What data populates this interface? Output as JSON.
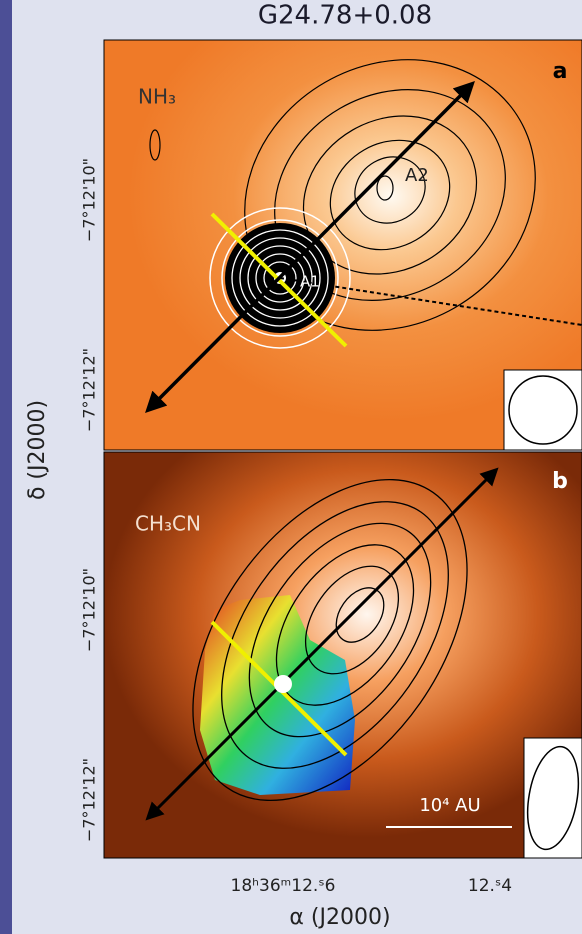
{
  "title": "G24.78+0.08",
  "panels": [
    {
      "letter": "a",
      "molecule": "NH₃",
      "sources": [
        "A1",
        "A2"
      ],
      "yticks": [
        "−7°12'10\"",
        "−7°12'12\""
      ]
    },
    {
      "letter": "b",
      "molecule": "CH₃CN",
      "scale_bar": "10⁴ AU",
      "yticks": [
        "−7°12'10\"",
        "−7°12'12\""
      ]
    }
  ],
  "xticks": [
    "18ʰ36ᵐ12.ˢ6",
    "12.ˢ4"
  ],
  "xlabel": "α (J2000)",
  "ylabel": "δ (J2000)"
}
